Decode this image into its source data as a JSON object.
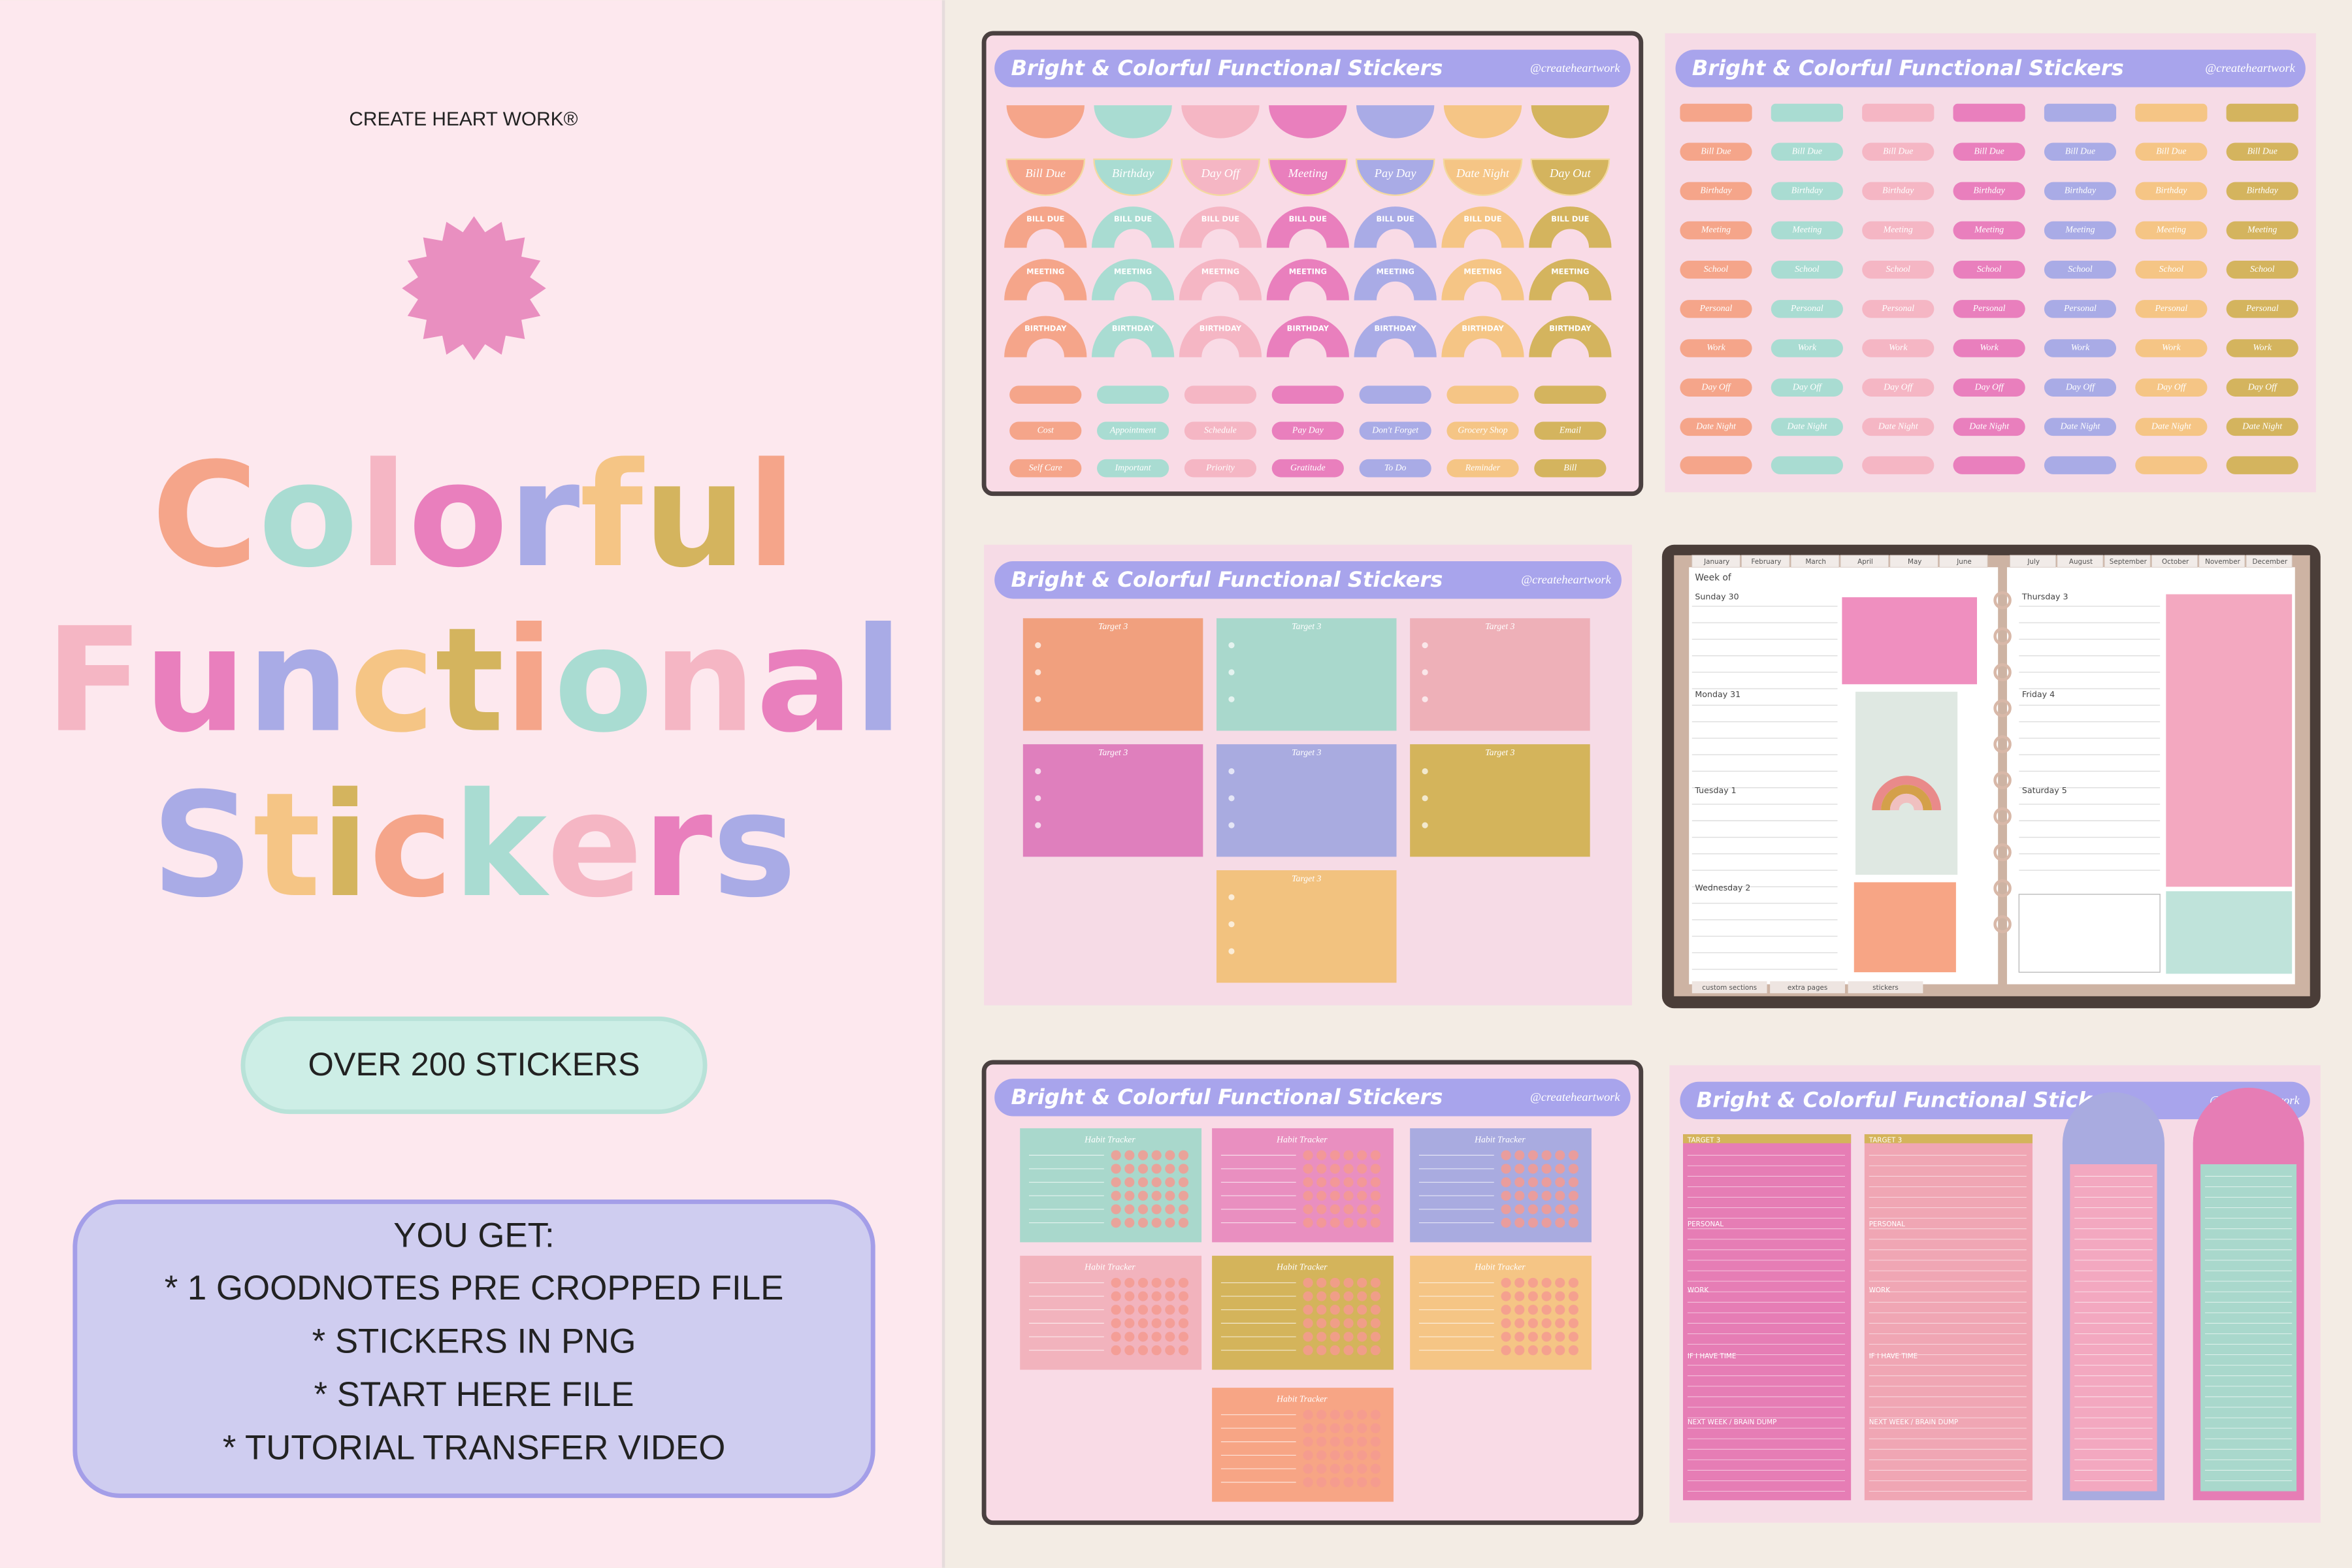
{
  "brand": "CREATE HEART WORK®",
  "title": {
    "line1": "Colorful",
    "line2": "Functional",
    "line3": "Stickers"
  },
  "badge": "OVER 200 STICKERS",
  "you_get": {
    "heading": "YOU GET:",
    "items": [
      "* 1 GOODNOTES PRE CROPPED FILE",
      "* STICKERS IN PNG",
      "* START HERE FILE",
      "* TUTORIAL TRANSFER VIDEO"
    ]
  },
  "sheets": {
    "title": "Bright & Colorful Functional Stickers",
    "handle": "@createheartwork",
    "sheet1": {
      "row2": [
        "Bill Due",
        "Birthday",
        "Day Off",
        "Meeting",
        "Pay Day",
        "Date Night",
        "Day Out"
      ],
      "arches": [
        "BILL DUE",
        "MEETING",
        "BIRTHDAY"
      ],
      "row7": [
        "Cost",
        "Appointment",
        "Schedule",
        "Pay Day",
        "Don't Forget",
        "Grocery Shop",
        "Email"
      ],
      "row8": [
        "Self Care",
        "Important",
        "Priority",
        "Gratitude",
        "To Do",
        "Reminder",
        "Bill"
      ]
    },
    "sheet2": {
      "labels": [
        "Bill Due",
        "Birthday",
        "Meeting",
        "School",
        "Personal",
        "Work",
        "Day Off",
        "Date Night"
      ]
    },
    "sheet3": {
      "card_title": "Target 3"
    },
    "sheet5": {
      "card_title": "Habit Tracker"
    },
    "sheet6": {
      "sections": [
        "TARGET 3",
        "PERSONAL",
        "WORK",
        "IF I HAVE TIME",
        "NEXT WEEK / BRAIN DUMP"
      ]
    }
  },
  "planner": {
    "months": [
      "January",
      "February",
      "March",
      "April",
      "May",
      "June",
      "July",
      "August",
      "September",
      "October",
      "November",
      "December"
    ],
    "week_of": "Week of",
    "days": [
      "Sunday 30",
      "Monday 31",
      "Tuesday 1",
      "Wednesday 2",
      "Thursday 3",
      "Friday 4",
      "Saturday 5"
    ],
    "tabs": [
      "custom sections",
      "extra pages",
      "stickers"
    ]
  }
}
